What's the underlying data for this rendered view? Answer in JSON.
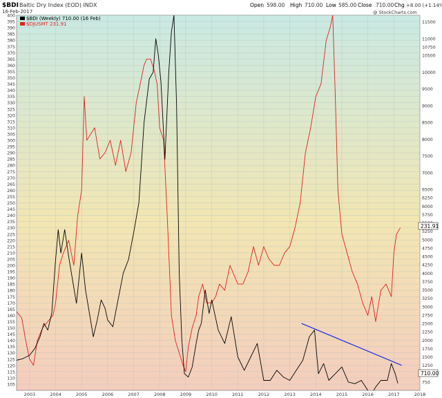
{
  "header": {
    "symbol": "$BDI",
    "name": "Baltic Dry Index (EOD) INDX",
    "date": "16-Feb-2017",
    "open_label": "Open",
    "open": "598.00",
    "high_label": "High",
    "high": "710.00",
    "low_label": "Low",
    "low": "585.00",
    "close_label": "Close",
    "close": "710.00",
    "chg_label": "Chg",
    "chg": "+8.00 (+1.14%)",
    "watermark": "@ StockCharts.com"
  },
  "legend": [
    {
      "label": "$BDI (Weekly) 710.00 (16 Feb)",
      "color": "#000000"
    },
    {
      "label": "$DJUSMT 231.91",
      "color": "#e02020"
    }
  ],
  "badges": {
    "right_upper": "231.91",
    "right_lower": "710.00"
  },
  "colors": {
    "bdi": "#000000",
    "djusmt": "#e02020",
    "trendline": "#1a2ee0",
    "bg_top": "#c9e9e3",
    "bg_mid": "#f2e6b2",
    "bg_bottom": "#f4cdbd"
  },
  "chart_data": {
    "type": "line",
    "x_ticks": [
      "2003",
      "2004",
      "2005",
      "2006",
      "2007",
      "2008",
      "2009",
      "2010",
      "2011",
      "2012",
      "2013",
      "2014",
      "2015",
      "2016",
      "2017",
      "2018"
    ],
    "left_axis": {
      "label": "",
      "range": [
        100,
        400
      ],
      "ticks": [
        105,
        110,
        115,
        120,
        125,
        130,
        135,
        140,
        145,
        150,
        155,
        160,
        165,
        170,
        175,
        180,
        185,
        190,
        195,
        200,
        205,
        210,
        215,
        220,
        225,
        230,
        235,
        240,
        245,
        250,
        255,
        260,
        265,
        270,
        275,
        280,
        285,
        290,
        295,
        300,
        305,
        310,
        315,
        320,
        325,
        330,
        335,
        340,
        345,
        350,
        355,
        360,
        365,
        370,
        375,
        380,
        385,
        390,
        395,
        400
      ]
    },
    "right_axis": {
      "label": "",
      "range": [
        500,
        11700
      ],
      "ticks": [
        750,
        1000,
        1250,
        1500,
        1750,
        2000,
        2250,
        2500,
        2750,
        3000,
        3250,
        3500,
        3750,
        4000,
        4250,
        4500,
        4750,
        5000,
        5250,
        5500,
        5750,
        6000,
        6250,
        6500,
        7000,
        7500,
        8000,
        8500,
        9000,
        9500,
        10000,
        10500,
        10750,
        11000,
        11500
      ]
    },
    "grid": true,
    "legend_position": "top-left",
    "series": [
      {
        "name": "$DJUSMT 231.91",
        "axis": "left",
        "x": [
          2002.5,
          2002.7,
          2002.85,
          2003.0,
          2003.15,
          2003.3,
          2003.5,
          2003.7,
          2003.9,
          2004.0,
          2004.15,
          2004.3,
          2004.5,
          2004.7,
          2004.85,
          2005.0,
          2005.1,
          2005.2,
          2005.35,
          2005.5,
          2005.7,
          2005.9,
          2006.1,
          2006.3,
          2006.5,
          2006.7,
          2006.9,
          2007.1,
          2007.25,
          2007.4,
          2007.5,
          2007.65,
          2007.8,
          2007.9,
          2008.0,
          2008.15,
          2008.3,
          2008.45,
          2008.6,
          2008.75,
          2008.9,
          2009.0,
          2009.1,
          2009.25,
          2009.4,
          2009.5,
          2009.65,
          2009.8,
          2010.0,
          2010.15,
          2010.3,
          2010.5,
          2010.7,
          2010.9,
          2011.0,
          2011.2,
          2011.4,
          2011.6,
          2011.8,
          2012.0,
          2012.2,
          2012.4,
          2012.6,
          2012.8,
          2013.0,
          2013.2,
          2013.4,
          2013.6,
          2013.8,
          2014.0,
          2014.2,
          2014.4,
          2014.55,
          2014.65,
          2014.75,
          2014.85,
          2015.0,
          2015.2,
          2015.4,
          2015.6,
          2015.8,
          2016.0,
          2016.15,
          2016.3,
          2016.5,
          2016.7,
          2016.9,
          2017.0,
          2017.1,
          2017.25
        ],
        "y": [
          163,
          158,
          140,
          125,
          120,
          140,
          150,
          155,
          160,
          170,
          200,
          210,
          220,
          200,
          240,
          260,
          335,
          300,
          305,
          310,
          285,
          290,
          300,
          280,
          300,
          275,
          290,
          330,
          345,
          360,
          365,
          365,
          355,
          345,
          310,
          300,
          235,
          160,
          140,
          130,
          120,
          115,
          135,
          150,
          160,
          175,
          185,
          170,
          170,
          175,
          185,
          180,
          200,
          190,
          185,
          185,
          195,
          215,
          200,
          215,
          205,
          200,
          200,
          210,
          215,
          230,
          250,
          290,
          310,
          335,
          345,
          380,
          390,
          400,
          335,
          260,
          225,
          210,
          195,
          185,
          170,
          160,
          175,
          155,
          180,
          185,
          175,
          210,
          225,
          230
        ]
      },
      {
        "name": "$BDI (Weekly) 710.00 (16 Feb)",
        "axis": "right",
        "x": [
          2002.5,
          2002.75,
          2003.0,
          2003.2,
          2003.4,
          2003.55,
          2003.7,
          2003.85,
          2004.0,
          2004.1,
          2004.2,
          2004.35,
          2004.5,
          2004.65,
          2004.8,
          2005.0,
          2005.15,
          2005.3,
          2005.45,
          2005.6,
          2005.75,
          2005.9,
          2006.0,
          2006.2,
          2006.4,
          2006.6,
          2006.8,
          2007.0,
          2007.2,
          2007.4,
          2007.6,
          2007.75,
          2007.85,
          2007.95,
          2008.05,
          2008.2,
          2008.35,
          2008.45,
          2008.55,
          2008.65,
          2008.75,
          2008.85,
          2008.95,
          2009.1,
          2009.25,
          2009.4,
          2009.5,
          2009.6,
          2009.75,
          2009.9,
          2010.0,
          2010.25,
          2010.5,
          2010.75,
          2011.0,
          2011.25,
          2011.5,
          2011.75,
          2012.0,
          2012.25,
          2012.5,
          2012.75,
          2013.0,
          2013.25,
          2013.5,
          2013.75,
          2013.95,
          2014.1,
          2014.3,
          2014.5,
          2014.75,
          2015.0,
          2015.25,
          2015.5,
          2015.75,
          2016.0,
          2016.15,
          2016.3,
          2016.5,
          2016.75,
          2016.9,
          2017.05,
          2017.15
        ],
        "y": [
          1400,
          1450,
          1550,
          1750,
          2100,
          2500,
          2300,
          2800,
          4400,
          5300,
          4600,
          5300,
          4500,
          3800,
          3100,
          4600,
          3500,
          2800,
          2100,
          2600,
          3200,
          2950,
          2600,
          2400,
          3200,
          4000,
          4400,
          5200,
          6100,
          8500,
          9800,
          10000,
          11000,
          10500,
          9700,
          7400,
          10000,
          11200,
          11700,
          9000,
          4000,
          2000,
          1000,
          900,
          1200,
          1900,
          2300,
          2500,
          3500,
          2800,
          3200,
          2300,
          1900,
          2700,
          1500,
          1100,
          1500,
          1900,
          800,
          800,
          1100,
          900,
          800,
          1100,
          1400,
          2100,
          2300,
          1000,
          1300,
          800,
          1000,
          1200,
          750,
          700,
          800,
          500,
          400,
          600,
          800,
          800,
          1300,
          1000,
          710
        ]
      }
    ],
    "trendline": {
      "x": [
        2013.45,
        2017.3
      ],
      "y": [
        2500,
        1250
      ],
      "axis": "right"
    }
  }
}
